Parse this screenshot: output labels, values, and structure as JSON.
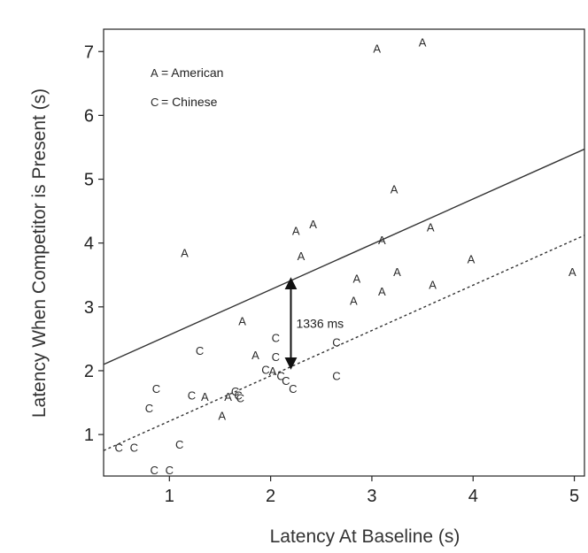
{
  "chart_data": {
    "type": "scatter",
    "xlabel": "Latency At Baseline (s)",
    "ylabel": "Latency When Competitor is Present (s)",
    "xlim": [
      0.35,
      5.1
    ],
    "ylim": [
      0.35,
      7.35
    ],
    "xticks": [
      "1",
      "2",
      "3",
      "4",
      "5"
    ],
    "yticks": [
      "1",
      "2",
      "3",
      "4",
      "5",
      "6",
      "7"
    ],
    "legend": {
      "placement": "top-left",
      "entries": [
        {
          "symbol": "A",
          "label": "= American"
        },
        {
          "symbol": "C",
          "label": "= Chinese"
        }
      ]
    },
    "series": [
      {
        "symbol": "A",
        "points": [
          [
            3.05,
            7.05
          ],
          [
            3.5,
            7.15
          ],
          [
            1.15,
            3.85
          ],
          [
            3.22,
            4.85
          ],
          [
            2.25,
            4.2
          ],
          [
            2.42,
            4.3
          ],
          [
            3.58,
            4.25
          ],
          [
            2.3,
            3.8
          ],
          [
            3.1,
            4.05
          ],
          [
            2.85,
            3.45
          ],
          [
            3.25,
            3.55
          ],
          [
            3.98,
            3.75
          ],
          [
            3.6,
            3.35
          ],
          [
            3.1,
            3.25
          ],
          [
            2.82,
            3.1
          ],
          [
            1.72,
            2.78
          ],
          [
            1.85,
            2.25
          ],
          [
            1.58,
            1.6
          ],
          [
            1.35,
            1.6
          ],
          [
            1.52,
            1.3
          ],
          [
            2.02,
            2.0
          ],
          [
            4.98,
            3.55
          ]
        ]
      },
      {
        "symbol": "C",
        "points": [
          [
            1.3,
            2.32
          ],
          [
            2.05,
            2.52
          ],
          [
            2.05,
            2.22
          ],
          [
            1.95,
            2.02
          ],
          [
            2.65,
            2.45
          ],
          [
            2.1,
            1.92
          ],
          [
            2.15,
            1.85
          ],
          [
            2.22,
            1.72
          ],
          [
            2.65,
            1.92
          ],
          [
            1.65,
            1.68
          ],
          [
            1.68,
            1.62
          ],
          [
            1.7,
            1.58
          ],
          [
            1.22,
            1.62
          ],
          [
            0.87,
            1.72
          ],
          [
            0.8,
            1.42
          ],
          [
            0.5,
            0.8
          ],
          [
            0.65,
            0.8
          ],
          [
            1.1,
            0.85
          ],
          [
            0.85,
            0.45
          ],
          [
            1.0,
            0.45
          ]
        ]
      }
    ],
    "lines": [
      {
        "name": "American",
        "style": "solid",
        "intercept": 1.85,
        "slope": 0.71
      },
      {
        "name": "Chinese",
        "style": "dotted",
        "intercept": 0.5,
        "slope": 0.71
      }
    ],
    "annotation": {
      "text": "1336 ms",
      "x": 2.2,
      "y_top": 3.41,
      "y_bottom": 2.07
    }
  }
}
